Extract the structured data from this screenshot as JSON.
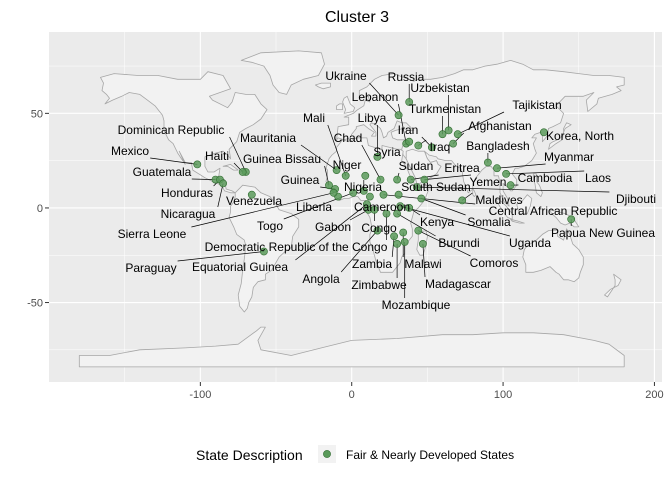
{
  "title": "Cluster 3",
  "legend": {
    "title": "State Description",
    "items": [
      {
        "label": "Fair & Nearly Developed States",
        "color": "#5a9a5a"
      }
    ]
  },
  "colors": {
    "panel": "#ebebeb",
    "grid": "#ffffff",
    "land_fill": "#f2f2f2",
    "land_stroke": "#a6a6a6",
    "point": "#5a9a5a",
    "point_stroke": "#2e6b2e",
    "leader": "#000000"
  },
  "chart_data": {
    "type": "scatter",
    "subtype": "world-map-points",
    "title": "Cluster 3",
    "xlabel": "",
    "ylabel": "",
    "xlim": [
      -200,
      205
    ],
    "ylim": [
      -92,
      93
    ],
    "x_ticks": [
      -100,
      0,
      100,
      200
    ],
    "y_ticks": [
      -50,
      0,
      50
    ],
    "grid": true,
    "legend_position": "bottom",
    "points": [
      {
        "name": "Russia",
        "x": 38,
        "y": 56
      },
      {
        "name": "Ukraine",
        "x": 31,
        "y": 49
      },
      {
        "name": "Uzbekistan",
        "x": 64,
        "y": 41
      },
      {
        "name": "Lebanon",
        "x": 36,
        "y": 34
      },
      {
        "name": "Turkmenistan",
        "x": 60,
        "y": 39
      },
      {
        "name": "Tajikistan",
        "x": 70,
        "y": 39
      },
      {
        "name": "Mali",
        "x": -4,
        "y": 17
      },
      {
        "name": "Libya",
        "x": 17,
        "y": 27
      },
      {
        "name": "Afghanistan",
        "x": 67,
        "y": 34
      },
      {
        "name": "Iran",
        "x": 53,
        "y": 32
      },
      {
        "name": "Dominican Republic",
        "x": -70,
        "y": 19
      },
      {
        "name": "Korea, North",
        "x": 127,
        "y": 40
      },
      {
        "name": "Mauritania",
        "x": -10,
        "y": 20
      },
      {
        "name": "Chad",
        "x": 19,
        "y": 15
      },
      {
        "name": "Iraq",
        "x": 44,
        "y": 33
      },
      {
        "name": "Bangladesh",
        "x": 90,
        "y": 24
      },
      {
        "name": "Syria",
        "x": 38,
        "y": 35
      },
      {
        "name": "Mexico",
        "x": -102,
        "y": 23
      },
      {
        "name": "Haiti",
        "x": -72,
        "y": 19
      },
      {
        "name": "Guinea Bissau",
        "x": -15,
        "y": 12
      },
      {
        "name": "Niger",
        "x": 9,
        "y": 17
      },
      {
        "name": "Myanmar",
        "x": 96,
        "y": 21
      },
      {
        "name": "Sudan",
        "x": 30,
        "y": 15
      },
      {
        "name": "Eritrea",
        "x": 39,
        "y": 15
      },
      {
        "name": "Guatemala",
        "x": -90,
        "y": 15
      },
      {
        "name": "Guinea",
        "x": -11,
        "y": 10
      },
      {
        "name": "Yemen",
        "x": 48,
        "y": 15
      },
      {
        "name": "Cambodia",
        "x": 105,
        "y": 12
      },
      {
        "name": "Laos",
        "x": 102,
        "y": 18
      },
      {
        "name": "Nigeria",
        "x": 8,
        "y": 9
      },
      {
        "name": "South Sudan",
        "x": 31,
        "y": 7
      },
      {
        "name": "Honduras",
        "x": -87,
        "y": 15
      },
      {
        "name": "Venezuela",
        "x": -66,
        "y": 7
      },
      {
        "name": "Djibouti",
        "x": 43,
        "y": 11
      },
      {
        "name": "Liberia",
        "x": -9,
        "y": 6
      },
      {
        "name": "Maldives",
        "x": 73,
        "y": 4
      },
      {
        "name": "Cameroon",
        "x": 12,
        "y": 6
      },
      {
        "name": "Central African Republic",
        "x": 21,
        "y": 7
      },
      {
        "name": "Nicaragua",
        "x": -85,
        "y": 13
      },
      {
        "name": "Somalia",
        "x": 46,
        "y": 5
      },
      {
        "name": "Sierra Leone",
        "x": -12,
        "y": 8
      },
      {
        "name": "Togo",
        "x": 1,
        "y": 8
      },
      {
        "name": "Gabon",
        "x": 11,
        "y": -1
      },
      {
        "name": "Kenya",
        "x": 38,
        "y": 0
      },
      {
        "name": "Congo",
        "x": 15,
        "y": -1
      },
      {
        "name": "Papua New Guinea",
        "x": 145,
        "y": -6
      },
      {
        "name": "Burundi",
        "x": 30,
        "y": -3
      },
      {
        "name": "Uganda",
        "x": 32,
        "y": 1
      },
      {
        "name": "Democratic Republic of the Congo",
        "x": 23,
        "y": -3
      },
      {
        "name": "Paraguay",
        "x": -58,
        "y": -23
      },
      {
        "name": "Equatorial Guinea",
        "x": 10,
        "y": 2
      },
      {
        "name": "Zambia",
        "x": 28,
        "y": -15
      },
      {
        "name": "Malawi",
        "x": 34,
        "y": -13
      },
      {
        "name": "Comoros",
        "x": 44,
        "y": -12
      },
      {
        "name": "Angola",
        "x": 17,
        "y": -12
      },
      {
        "name": "Madagascar",
        "x": 47,
        "y": -19
      },
      {
        "name": "Zimbabwe",
        "x": 30,
        "y": -19
      },
      {
        "name": "Mozambique",
        "x": 35,
        "y": -18
      }
    ]
  }
}
